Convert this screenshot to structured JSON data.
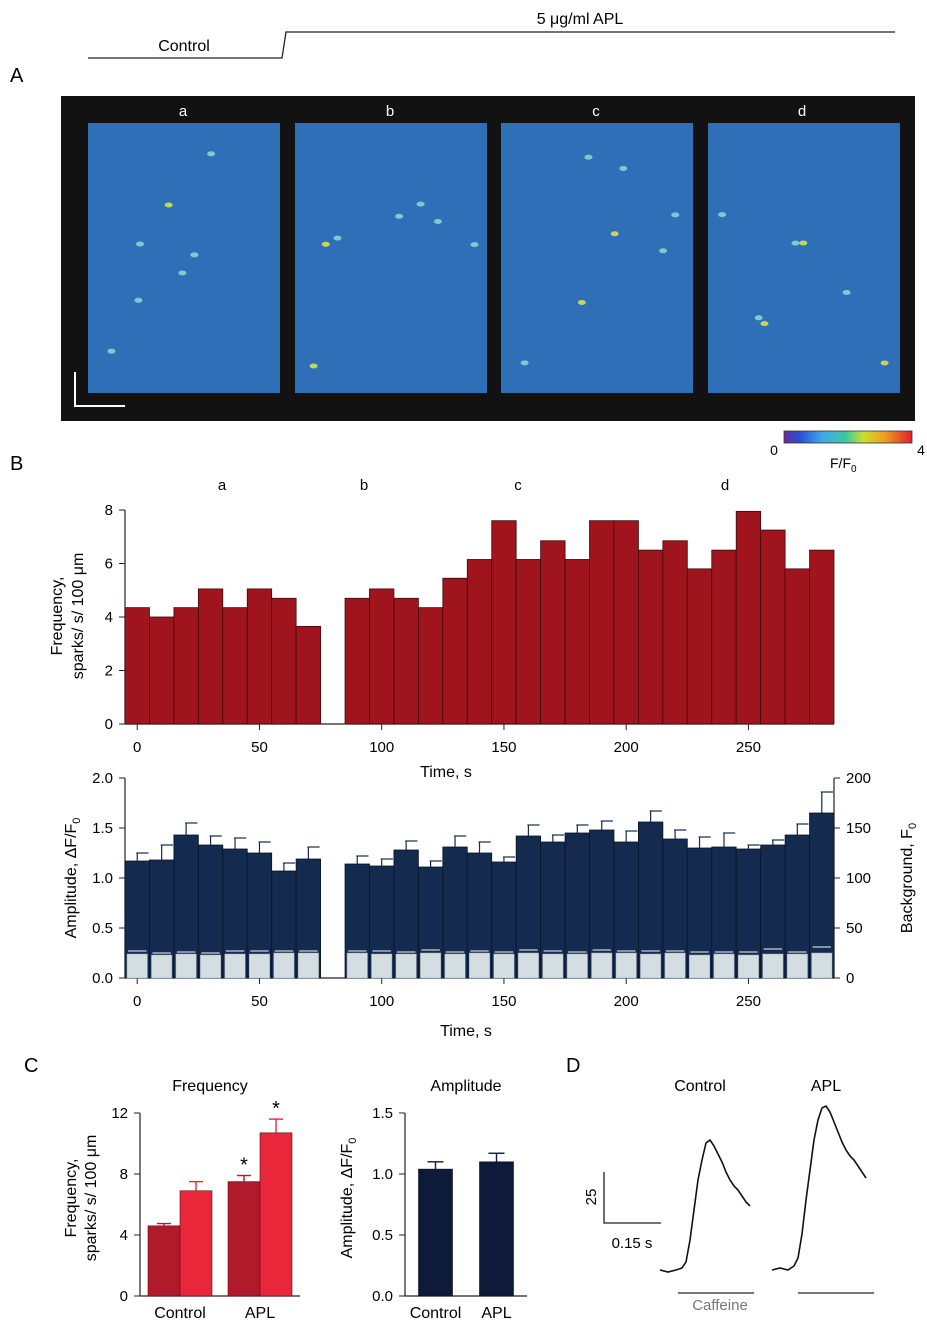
{
  "protocol": {
    "control_label": "Control",
    "apl_label": "5 μg/ml APL"
  },
  "panelA": {
    "letter": "A",
    "frame_labels": [
      "a",
      "b",
      "c",
      "d"
    ],
    "image_color": "#2f6fb8",
    "colorbar": {
      "min_label": "0",
      "max_label": "4",
      "label": "F/F",
      "label_sub": "0"
    }
  },
  "panelB": {
    "letter": "B",
    "epoch_labels": [
      "a",
      "b",
      "c",
      "d"
    ],
    "freq_chart": {
      "type": "bar",
      "ylabel_line1": "Frequency,",
      "ylabel_line2": "sparks/ s/ 100 μm",
      "xlabel": "Time, s",
      "ylim": [
        0,
        8
      ],
      "yticks": [
        "0",
        "2",
        "4",
        "6",
        "8"
      ],
      "xlim": [
        -5,
        285
      ],
      "xticks": [
        "0",
        "50",
        "100",
        "150",
        "200",
        "250"
      ],
      "bar_width": 10,
      "color": "#a0141e",
      "x": [
        0,
        10,
        20,
        30,
        40,
        50,
        60,
        70,
        90,
        100,
        110,
        120,
        130,
        140,
        150,
        160,
        170,
        180,
        190,
        200,
        210,
        220,
        230,
        240,
        250,
        260,
        270,
        280
      ],
      "values": [
        4.35,
        4.0,
        4.35,
        5.05,
        4.35,
        5.05,
        4.7,
        3.65,
        4.7,
        5.05,
        4.7,
        4.35,
        5.45,
        6.15,
        7.6,
        6.15,
        6.85,
        6.15,
        7.6,
        7.6,
        6.5,
        6.85,
        5.8,
        6.5,
        7.95,
        7.25,
        5.8,
        6.5
      ]
    },
    "amp_chart": {
      "type": "bar",
      "ylabel": "Amplitude, ΔF/F",
      "ylabel_sub": "0",
      "y2label": "Background, F",
      "y2label_sub": "0",
      "xlabel": "Time, s",
      "ylim": [
        0,
        2.0
      ],
      "yticks": [
        "0.0",
        "0.5",
        "1.0",
        "1.5",
        "2.0"
      ],
      "y2lim": [
        0,
        200
      ],
      "y2ticks": [
        "0",
        "50",
        "100",
        "150",
        "200"
      ],
      "xlim": [
        -5,
        285
      ],
      "xticks": [
        "0",
        "50",
        "100",
        "150",
        "200",
        "250"
      ],
      "bar_width": 10,
      "amp_color": "#142a4e",
      "bg_color": "#d4dde2",
      "x": [
        0,
        10,
        20,
        30,
        40,
        50,
        60,
        70,
        90,
        100,
        110,
        120,
        130,
        140,
        150,
        160,
        170,
        180,
        190,
        200,
        210,
        220,
        230,
        240,
        250,
        260,
        270,
        280
      ],
      "amplitude": [
        1.17,
        1.18,
        1.43,
        1.33,
        1.29,
        1.25,
        1.07,
        1.19,
        1.14,
        1.12,
        1.28,
        1.11,
        1.31,
        1.25,
        1.16,
        1.42,
        1.36,
        1.45,
        1.48,
        1.36,
        1.56,
        1.39,
        1.3,
        1.31,
        1.29,
        1.33,
        1.43,
        1.65
      ],
      "amplitude_err": [
        0.08,
        0.15,
        0.12,
        0.09,
        0.11,
        0.11,
        0.08,
        0.12,
        0.08,
        0.07,
        0.09,
        0.06,
        0.11,
        0.11,
        0.05,
        0.11,
        0.07,
        0.08,
        0.09,
        0.11,
        0.11,
        0.09,
        0.11,
        0.14,
        0.04,
        0.05,
        0.11,
        0.21
      ],
      "background": [
        24,
        23,
        24,
        23,
        24,
        24,
        25,
        25,
        25,
        24,
        24,
        25,
        24,
        25,
        24,
        25,
        24,
        24,
        25,
        25,
        24,
        25,
        23,
        24,
        23,
        24,
        24,
        25
      ],
      "background_err": [
        3,
        2,
        2,
        2,
        3,
        3,
        2,
        2,
        2,
        3,
        2,
        3,
        2,
        2,
        2,
        3,
        3,
        2,
        3,
        2,
        3,
        2,
        3,
        2,
        3,
        5,
        2,
        6
      ]
    }
  },
  "panelC": {
    "letter": "C",
    "freq_chart": {
      "type": "bar",
      "title": "Frequency",
      "ylabel_line1": "Frequency,",
      "ylabel_line2": "sparks/ s/ 100 μm",
      "ylim": [
        0,
        12
      ],
      "yticks": [
        "0",
        "4",
        "8",
        "12"
      ],
      "categories": [
        "Control",
        "APL"
      ],
      "series": [
        {
          "values": [
            4.6,
            7.5
          ],
          "errors": [
            0.15,
            0.4
          ],
          "color": "#b01a2a"
        },
        {
          "values": [
            6.9,
            10.7
          ],
          "errors": [
            0.6,
            0.9
          ],
          "color": "#e8283a"
        }
      ],
      "annotations": [
        "*",
        "*"
      ]
    },
    "amp_chart": {
      "type": "bar",
      "title": "Amplitude",
      "ylabel": "Amplitude, ΔF/F",
      "ylabel_sub": "0",
      "ylim": [
        0,
        1.5
      ],
      "yticks": [
        "0.0",
        "0.5",
        "1.0",
        "1.5"
      ],
      "categories": [
        "Control",
        "APL"
      ],
      "values": [
        1.04,
        1.1
      ],
      "errors": [
        0.06,
        0.07
      ],
      "color": "#0e1a3a"
    }
  },
  "panelD": {
    "letter": "D",
    "control_label": "Control",
    "apl_label": "APL",
    "scale_y_label": "25",
    "scale_x_label": "0.15 s",
    "caffeine_label": "Caffeine"
  }
}
